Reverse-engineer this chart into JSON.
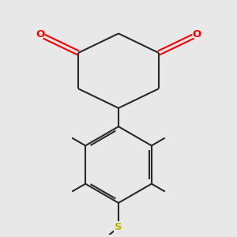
{
  "bg_color": "#e8e8e8",
  "bond_color": "#2a2a2a",
  "oxygen_color": "#ff0000",
  "sulfur_color": "#b8b800",
  "bond_width": 1.5,
  "figsize": [
    3.0,
    3.0
  ],
  "dpi": 100,
  "xlim": [
    1.8,
    8.2
  ],
  "ylim": [
    1.2,
    9.0
  ]
}
